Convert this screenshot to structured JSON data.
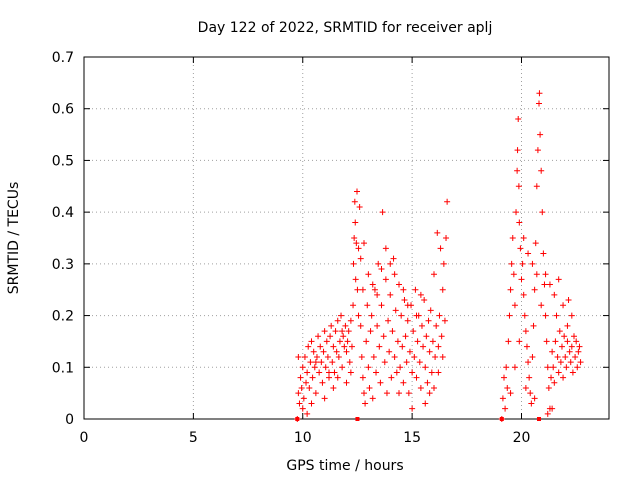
{
  "chart_data": {
    "type": "scatter",
    "title": "Day 122 of 2022, SRMTID for receiver aplj",
    "xlabel": "GPS time / hours",
    "ylabel": "SRMTID / TECUs",
    "xlim": [
      0,
      24
    ],
    "ylim": [
      0,
      0.7
    ],
    "xticks": [
      0,
      5,
      10,
      15,
      20
    ],
    "yticks": [
      0,
      0.1,
      0.2,
      0.3,
      0.4,
      0.5,
      0.6,
      0.7
    ],
    "xtick_labels": [
      "0",
      "5",
      "10",
      "15",
      "20"
    ],
    "ytick_labels": [
      "0",
      "0.1",
      "0.2",
      "0.3",
      "0.4",
      "0.5",
      "0.6",
      "0.7"
    ],
    "grid": true,
    "marker": "+",
    "color": "#ff0000",
    "series": [
      {
        "name": "aplj",
        "points": [
          [
            9.75,
            0.0
          ],
          [
            9.8,
            0.05
          ],
          [
            9.85,
            0.03
          ],
          [
            9.9,
            0.08
          ],
          [
            9.95,
            0.06
          ],
          [
            10.0,
            0.1
          ],
          [
            10.05,
            0.04
          ],
          [
            10.1,
            0.12
          ],
          [
            10.15,
            0.07
          ],
          [
            10.2,
            0.09
          ],
          [
            10.25,
            0.14
          ],
          [
            10.3,
            0.06
          ],
          [
            10.35,
            0.11
          ],
          [
            10.4,
            0.15
          ],
          [
            10.45,
            0.08
          ],
          [
            10.5,
            0.13
          ],
          [
            10.55,
            0.1
          ],
          [
            10.6,
            0.05
          ],
          [
            10.65,
            0.12
          ],
          [
            10.7,
            0.16
          ],
          [
            10.75,
            0.09
          ],
          [
            10.8,
            0.14
          ],
          [
            10.85,
            0.11
          ],
          [
            10.9,
            0.07
          ],
          [
            10.95,
            0.13
          ],
          [
            11.0,
            0.17
          ],
          [
            11.05,
            0.1
          ],
          [
            11.1,
            0.15
          ],
          [
            11.15,
            0.12
          ],
          [
            11.2,
            0.08
          ],
          [
            11.25,
            0.16
          ],
          [
            11.3,
            0.18
          ],
          [
            11.35,
            0.11
          ],
          [
            11.4,
            0.14
          ],
          [
            11.45,
            0.09
          ],
          [
            11.5,
            0.17
          ],
          [
            11.55,
            0.13
          ],
          [
            11.6,
            0.19
          ],
          [
            11.65,
            0.12
          ],
          [
            11.7,
            0.15
          ],
          [
            11.75,
            0.2
          ],
          [
            11.8,
            0.1
          ],
          [
            11.85,
            0.16
          ],
          [
            11.9,
            0.14
          ],
          [
            11.95,
            0.18
          ],
          [
            12.0,
            0.13
          ],
          [
            12.05,
            0.15
          ],
          [
            12.1,
            0.17
          ],
          [
            12.15,
            0.11
          ],
          [
            12.2,
            0.19
          ],
          [
            12.25,
            0.14
          ],
          [
            12.3,
            0.22
          ],
          [
            12.32,
            0.3
          ],
          [
            12.35,
            0.35
          ],
          [
            12.38,
            0.42
          ],
          [
            12.4,
            0.38
          ],
          [
            12.42,
            0.27
          ],
          [
            12.45,
            0.34
          ],
          [
            12.48,
            0.44
          ],
          [
            12.5,
            0.25
          ],
          [
            12.55,
            0.2
          ],
          [
            12.6,
            0.41
          ],
          [
            12.65,
            0.18
          ],
          [
            12.7,
            0.12
          ],
          [
            12.75,
            0.08
          ],
          [
            12.8,
            0.05
          ],
          [
            12.85,
            0.03
          ],
          [
            12.9,
            0.15
          ],
          [
            12.95,
            0.22
          ],
          [
            13.0,
            0.1
          ],
          [
            13.05,
            0.06
          ],
          [
            13.1,
            0.17
          ],
          [
            13.15,
            0.2
          ],
          [
            13.2,
            0.04
          ],
          [
            13.25,
            0.12
          ],
          [
            13.3,
            0.25
          ],
          [
            13.35,
            0.09
          ],
          [
            13.4,
            0.18
          ],
          [
            13.45,
            0.3
          ],
          [
            13.5,
            0.14
          ],
          [
            13.55,
            0.07
          ],
          [
            13.6,
            0.22
          ],
          [
            13.65,
            0.4
          ],
          [
            13.7,
            0.16
          ],
          [
            13.75,
            0.11
          ],
          [
            13.8,
            0.27
          ],
          [
            13.85,
            0.05
          ],
          [
            13.9,
            0.19
          ],
          [
            13.95,
            0.13
          ],
          [
            14.0,
            0.24
          ],
          [
            14.05,
            0.08
          ],
          [
            14.1,
            0.17
          ],
          [
            14.15,
            0.31
          ],
          [
            14.2,
            0.12
          ],
          [
            14.25,
            0.21
          ],
          [
            14.3,
            0.09
          ],
          [
            14.35,
            0.15
          ],
          [
            14.4,
            0.26
          ],
          [
            14.45,
            0.1
          ],
          [
            14.5,
            0.2
          ],
          [
            14.55,
            0.14
          ],
          [
            14.6,
            0.07
          ],
          [
            14.65,
            0.23
          ],
          [
            14.7,
            0.16
          ],
          [
            14.75,
            0.11
          ],
          [
            14.8,
            0.19
          ],
          [
            14.85,
            0.05
          ],
          [
            14.9,
            0.13
          ],
          [
            14.95,
            0.22
          ],
          [
            15.0,
            0.09
          ],
          [
            15.05,
            0.17
          ],
          [
            15.1,
            0.12
          ],
          [
            15.15,
            0.25
          ],
          [
            15.2,
            0.08
          ],
          [
            15.25,
            0.15
          ],
          [
            15.3,
            0.2
          ],
          [
            15.35,
            0.11
          ],
          [
            15.4,
            0.06
          ],
          [
            15.45,
            0.18
          ],
          [
            15.5,
            0.14
          ],
          [
            15.55,
            0.23
          ],
          [
            15.6,
            0.1
          ],
          [
            15.65,
            0.16
          ],
          [
            15.7,
            0.07
          ],
          [
            15.75,
            0.19
          ],
          [
            15.8,
            0.13
          ],
          [
            15.85,
            0.21
          ],
          [
            15.9,
            0.09
          ],
          [
            15.95,
            0.15
          ],
          [
            16.0,
            0.28
          ],
          [
            16.05,
            0.12
          ],
          [
            16.1,
            0.18
          ],
          [
            16.15,
            0.36
          ],
          [
            16.2,
            0.14
          ],
          [
            16.25,
            0.2
          ],
          [
            16.3,
            0.33
          ],
          [
            16.35,
            0.16
          ],
          [
            16.4,
            0.25
          ],
          [
            16.45,
            0.3
          ],
          [
            16.5,
            0.19
          ],
          [
            16.55,
            0.35
          ],
          [
            16.6,
            0.42
          ],
          [
            9.8,
            0.12
          ],
          [
            10.0,
            0.02
          ],
          [
            10.2,
            0.01
          ],
          [
            10.4,
            0.03
          ],
          [
            10.6,
            0.11
          ],
          [
            11.0,
            0.04
          ],
          [
            11.2,
            0.09
          ],
          [
            11.4,
            0.06
          ],
          [
            11.6,
            0.08
          ],
          [
            11.8,
            0.17
          ],
          [
            12.0,
            0.07
          ],
          [
            12.2,
            0.09
          ],
          [
            12.55,
            0.33
          ],
          [
            12.65,
            0.31
          ],
          [
            12.75,
            0.25
          ],
          [
            12.8,
            0.34
          ],
          [
            13.0,
            0.28
          ],
          [
            13.2,
            0.26
          ],
          [
            13.4,
            0.24
          ],
          [
            13.6,
            0.29
          ],
          [
            13.8,
            0.33
          ],
          [
            14.0,
            0.3
          ],
          [
            14.2,
            0.28
          ],
          [
            14.4,
            0.05
          ],
          [
            14.6,
            0.25
          ],
          [
            14.8,
            0.22
          ],
          [
            15.0,
            0.02
          ],
          [
            15.2,
            0.2
          ],
          [
            15.4,
            0.24
          ],
          [
            15.6,
            0.03
          ],
          [
            15.8,
            0.05
          ],
          [
            16.0,
            0.06
          ],
          [
            16.2,
            0.09
          ],
          [
            16.4,
            0.12
          ],
          [
            19.1,
            0.0
          ],
          [
            19.15,
            0.04
          ],
          [
            19.2,
            0.08
          ],
          [
            19.25,
            0.02
          ],
          [
            19.3,
            0.1
          ],
          [
            19.35,
            0.06
          ],
          [
            19.4,
            0.15
          ],
          [
            19.45,
            0.2
          ],
          [
            19.5,
            0.25
          ],
          [
            19.55,
            0.3
          ],
          [
            19.6,
            0.35
          ],
          [
            19.65,
            0.28
          ],
          [
            19.7,
            0.22
          ],
          [
            19.75,
            0.4
          ],
          [
            19.8,
            0.48
          ],
          [
            19.82,
            0.52
          ],
          [
            19.85,
            0.58
          ],
          [
            19.88,
            0.45
          ],
          [
            19.9,
            0.38
          ],
          [
            19.95,
            0.33
          ],
          [
            20.0,
            0.27
          ],
          [
            20.05,
            0.3
          ],
          [
            20.1,
            0.24
          ],
          [
            20.15,
            0.2
          ],
          [
            20.2,
            0.17
          ],
          [
            20.25,
            0.14
          ],
          [
            20.3,
            0.11
          ],
          [
            20.35,
            0.08
          ],
          [
            20.4,
            0.05
          ],
          [
            20.45,
            0.03
          ],
          [
            20.5,
            0.12
          ],
          [
            20.55,
            0.18
          ],
          [
            20.6,
            0.25
          ],
          [
            20.65,
            0.34
          ],
          [
            20.7,
            0.45
          ],
          [
            20.75,
            0.52
          ],
          [
            20.8,
            0.61
          ],
          [
            20.82,
            0.63
          ],
          [
            20.85,
            0.55
          ],
          [
            20.9,
            0.48
          ],
          [
            20.95,
            0.4
          ],
          [
            21.0,
            0.32
          ],
          [
            21.05,
            0.26
          ],
          [
            21.1,
            0.2
          ],
          [
            21.15,
            0.15
          ],
          [
            21.2,
            0.1
          ],
          [
            21.25,
            0.06
          ],
          [
            21.3,
            0.02
          ],
          [
            21.35,
            0.08
          ],
          [
            21.4,
            0.13
          ],
          [
            21.45,
            0.1
          ],
          [
            21.5,
            0.07
          ],
          [
            21.55,
            0.15
          ],
          [
            21.6,
            0.2
          ],
          [
            21.65,
            0.12
          ],
          [
            21.7,
            0.09
          ],
          [
            21.75,
            0.17
          ],
          [
            21.8,
            0.11
          ],
          [
            21.85,
            0.14
          ],
          [
            21.9,
            0.08
          ],
          [
            21.95,
            0.16
          ],
          [
            22.0,
            0.12
          ],
          [
            22.05,
            0.1
          ],
          [
            22.1,
            0.15
          ],
          [
            22.15,
            0.23
          ],
          [
            22.2,
            0.13
          ],
          [
            22.25,
            0.11
          ],
          [
            22.3,
            0.14
          ],
          [
            22.35,
            0.09
          ],
          [
            22.4,
            0.16
          ],
          [
            22.45,
            0.12
          ],
          [
            22.5,
            0.15
          ],
          [
            22.55,
            0.1
          ],
          [
            22.6,
            0.13
          ],
          [
            22.65,
            0.14
          ],
          [
            22.7,
            0.11
          ],
          [
            19.5,
            0.05
          ],
          [
            19.7,
            0.1
          ],
          [
            19.9,
            0.15
          ],
          [
            20.1,
            0.35
          ],
          [
            20.3,
            0.32
          ],
          [
            20.5,
            0.3
          ],
          [
            20.7,
            0.28
          ],
          [
            20.9,
            0.22
          ],
          [
            21.1,
            0.28
          ],
          [
            21.3,
            0.26
          ],
          [
            21.5,
            0.24
          ],
          [
            21.7,
            0.27
          ],
          [
            21.9,
            0.22
          ],
          [
            22.1,
            0.18
          ],
          [
            22.3,
            0.2
          ],
          [
            21.2,
            0.01
          ],
          [
            21.4,
            0.02
          ],
          [
            20.2,
            0.06
          ],
          [
            20.6,
            0.04
          ]
        ]
      }
    ],
    "axis_markers_x": [
      9.75,
      12.5,
      19.1,
      20.8
    ]
  }
}
